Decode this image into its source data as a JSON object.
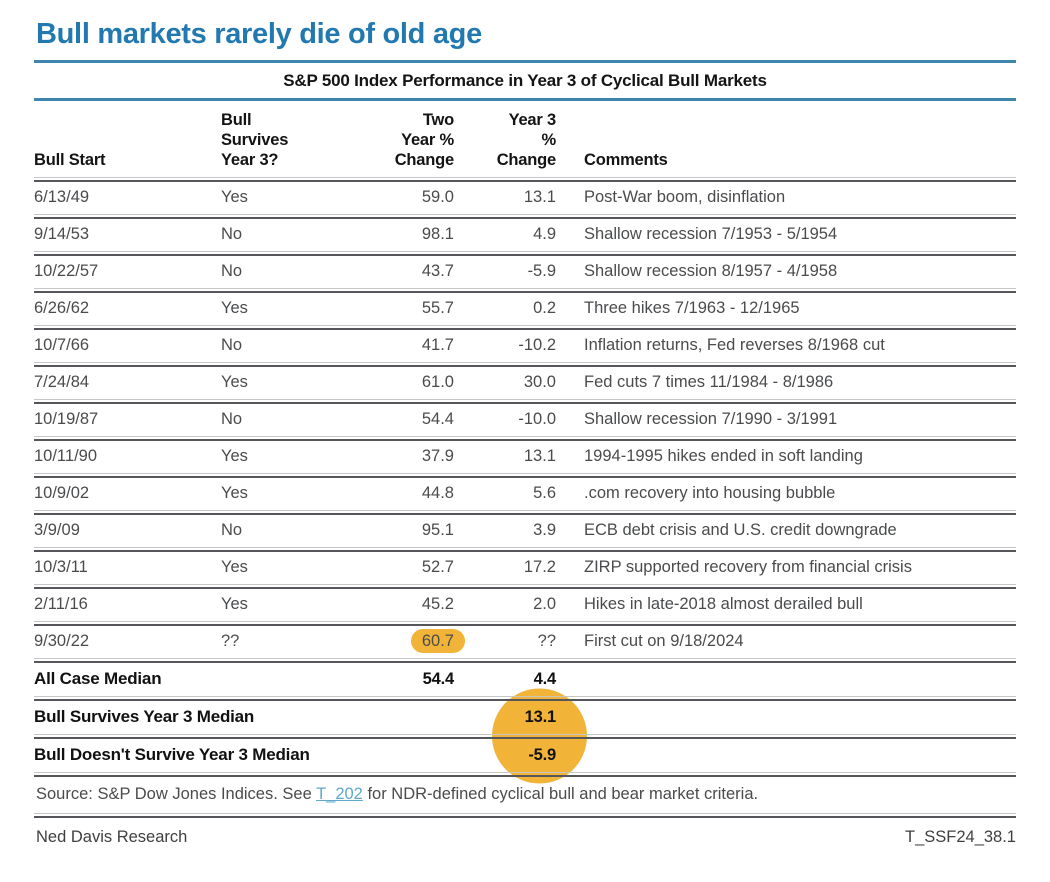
{
  "page_title": "Bull markets rarely die of old age",
  "chart_data": {
    "type": "table",
    "title": "S&P 500 Index Performance in Year 3 of Cyclical Bull Markets",
    "columns": [
      "Bull Start",
      "Bull\nSurvives\nYear 3?",
      "Two\nYear %\nChange",
      "Year 3\n%\nChange",
      "Comments"
    ],
    "rows": [
      {
        "bull_start": "6/13/49",
        "survives": "Yes",
        "two_year": "59.0",
        "year3": "13.1",
        "comment": "Post-War boom, disinflation",
        "two_year_highlight": false
      },
      {
        "bull_start": "9/14/53",
        "survives": "No",
        "two_year": "98.1",
        "year3": "4.9",
        "comment": "Shallow recession 7/1953 - 5/1954",
        "two_year_highlight": false
      },
      {
        "bull_start": "10/22/57",
        "survives": "No",
        "two_year": "43.7",
        "year3": "-5.9",
        "comment": "Shallow recession 8/1957 - 4/1958",
        "two_year_highlight": false
      },
      {
        "bull_start": "6/26/62",
        "survives": "Yes",
        "two_year": "55.7",
        "year3": "0.2",
        "comment": "Three hikes 7/1963 - 12/1965",
        "two_year_highlight": false
      },
      {
        "bull_start": "10/7/66",
        "survives": "No",
        "two_year": "41.7",
        "year3": "-10.2",
        "comment": "Inflation returns, Fed reverses 8/1968 cut",
        "two_year_highlight": false
      },
      {
        "bull_start": "7/24/84",
        "survives": "Yes",
        "two_year": "61.0",
        "year3": "30.0",
        "comment": "Fed cuts 7 times 11/1984 - 8/1986",
        "two_year_highlight": false
      },
      {
        "bull_start": "10/19/87",
        "survives": "No",
        "two_year": "54.4",
        "year3": "-10.0",
        "comment": "Shallow recession 7/1990 - 3/1991",
        "two_year_highlight": false
      },
      {
        "bull_start": "10/11/90",
        "survives": "Yes",
        "two_year": "37.9",
        "year3": "13.1",
        "comment": "1994-1995 hikes ended in soft landing",
        "two_year_highlight": false
      },
      {
        "bull_start": "10/9/02",
        "survives": "Yes",
        "two_year": "44.8",
        "year3": "5.6",
        "comment": ".com recovery into housing bubble",
        "two_year_highlight": false
      },
      {
        "bull_start": "3/9/09",
        "survives": "No",
        "two_year": "95.1",
        "year3": "3.9",
        "comment": "ECB debt crisis and U.S. credit downgrade",
        "two_year_highlight": false
      },
      {
        "bull_start": "10/3/11",
        "survives": "Yes",
        "two_year": "52.7",
        "year3": "17.2",
        "comment": "ZIRP supported recovery from financial crisis",
        "two_year_highlight": false
      },
      {
        "bull_start": "2/11/16",
        "survives": "Yes",
        "two_year": "45.2",
        "year3": "2.0",
        "comment": "Hikes in late-2018 almost derailed bull",
        "two_year_highlight": false
      },
      {
        "bull_start": "9/30/22",
        "survives": "??",
        "two_year": "60.7",
        "year3": "??",
        "comment": "First cut on 9/18/2024",
        "two_year_highlight": true
      }
    ],
    "summary_rows": [
      {
        "label": "All Case Median",
        "two_year": "54.4",
        "year3": "4.4",
        "year3_highlight": false
      },
      {
        "label": "Bull Survives Year 3 Median",
        "two_year": "",
        "year3": "13.1",
        "year3_highlight": true
      },
      {
        "label": "Bull Doesn't Survive Year 3 Median",
        "two_year": "",
        "year3": "-5.9",
        "year3_highlight": true
      }
    ]
  },
  "source": {
    "prefix": "Source: S&P Dow Jones Indices. See ",
    "link_label": "T_202",
    "suffix": " for NDR-defined cyclical bull and bear market criteria."
  },
  "footer": {
    "left": "Ned Davis Research",
    "right": "T_SSF24_38.1"
  },
  "colors": {
    "title_blue": "#2279B0",
    "rule_blue": "#3E86B0",
    "highlight_yellow": "#F2B438",
    "link_blue": "#5FA8C9",
    "divider_light": "#c6c6c6",
    "divider_dark": "#55565a",
    "text_body": "#4a4b4d",
    "text_strong": "#141414"
  }
}
